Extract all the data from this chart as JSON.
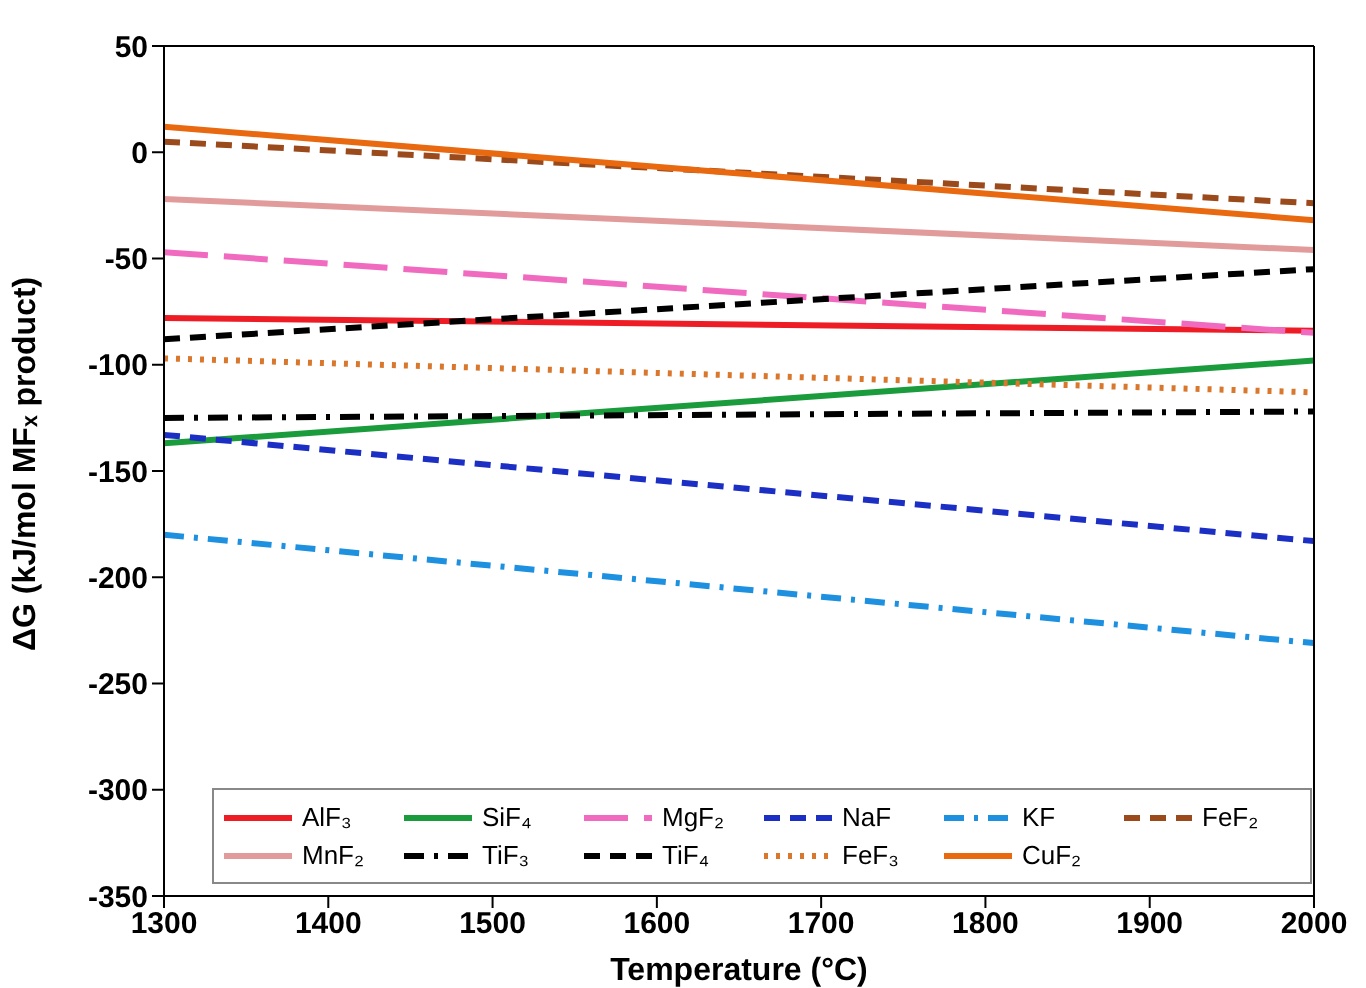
{
  "chart_data": {
    "type": "line",
    "xlabel": "Temperature (°C)",
    "ylabel": "ΔG (kJ/mol MFₓ product)",
    "xlim": [
      1300,
      2000
    ],
    "xticks": [
      1300,
      1400,
      1500,
      1600,
      1700,
      1800,
      1900,
      2000
    ],
    "ylim": [
      -350,
      50
    ],
    "yticks": [
      -350,
      -300,
      -250,
      -200,
      -150,
      -100,
      -50,
      0,
      50
    ],
    "grid": false,
    "legend": "bottom",
    "marker": "none",
    "x": [
      1300,
      2000
    ],
    "series": [
      {
        "name": "AlF₃",
        "color": "#ee1c25",
        "line_style": "solid",
        "values": [
          -78,
          -84
        ]
      },
      {
        "name": "SiF₄",
        "color": "#1a9b3c",
        "line_style": "solid",
        "values": [
          -137,
          -98
        ]
      },
      {
        "name": "MgF₂",
        "color": "#f06bc0",
        "line_style": "longdash",
        "values": [
          -47,
          -85
        ]
      },
      {
        "name": "NaF",
        "color": "#1c2fc4",
        "line_style": "dashed",
        "values": [
          -133,
          -183
        ]
      },
      {
        "name": "KF",
        "color": "#1e90e0",
        "line_style": "dashdot",
        "values": [
          -180,
          -231
        ]
      },
      {
        "name": "FeF₂",
        "color": "#9b4a1c",
        "line_style": "dashed",
        "values": [
          5,
          -24
        ]
      },
      {
        "name": "MnF₂",
        "color": "#e19b9b",
        "line_style": "solid",
        "values": [
          -22,
          -46
        ]
      },
      {
        "name": "TiF₃",
        "color": "#000000",
        "line_style": "dashdot",
        "values": [
          -125,
          -122
        ]
      },
      {
        "name": "TiF₄",
        "color": "#000000",
        "line_style": "dashed",
        "values": [
          -88,
          -55
        ]
      },
      {
        "name": "FeF₃",
        "color": "#d9782c",
        "line_style": "dotted",
        "values": [
          -97,
          -113
        ]
      },
      {
        "name": "CuF₂",
        "color": "#e8690f",
        "line_style": "solid",
        "values": [
          12,
          -32
        ]
      }
    ]
  }
}
